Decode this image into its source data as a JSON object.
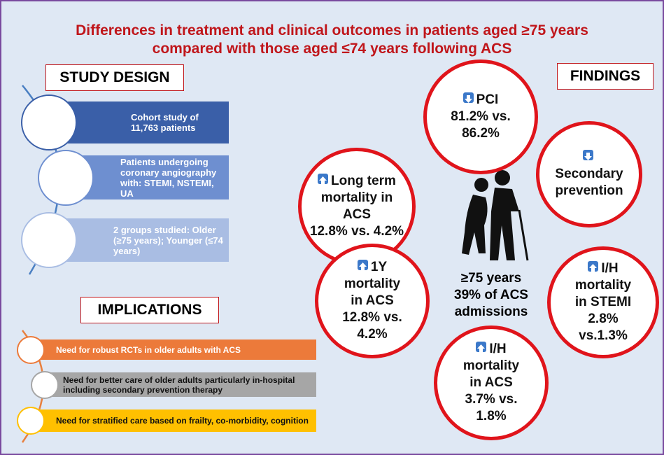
{
  "title": [
    "Differences in treatment and clinical outcomes in patients aged ≥75 years",
    "compared with those aged ≤74 years following ACS"
  ],
  "study_design": {
    "heading": "STUDY DESIGN",
    "items": [
      "Cohort study of 11,763 patients",
      "Patients undergoing coronary angiography with: STEMI, NSTEMI, UA",
      "2 groups studied: Older (≥75 years); Younger (≤74 years)"
    ]
  },
  "implications": {
    "heading": "IMPLICATIONS",
    "items": [
      "Need for robust RCTs in older adults with ACS",
      "Need for better care of older adults particularly in-hospital including secondary prevention therapy",
      "Need for stratified care based on frailty, co-morbidity, cognition"
    ]
  },
  "findings": {
    "heading": "FINDINGS",
    "items": [
      [
        "PCI",
        "81.2% vs.",
        "86.2%"
      ],
      [
        "Long term",
        "mortality in",
        "ACS",
        "12.8% vs. 4.2%"
      ],
      [
        "Secondary",
        "prevention"
      ],
      [
        "1Y",
        "mortality",
        "in ACS",
        "12.8% vs.",
        "4.2%"
      ],
      [
        "I/H",
        "mortality",
        "in STEMI",
        "2.8%",
        "vs.1.3%"
      ],
      [
        "I/H",
        "mortality",
        "in ACS",
        "3.7% vs.",
        "1.8%"
      ]
    ],
    "center": [
      "≥75 years",
      "39% of ACS",
      "admissions"
    ]
  }
}
